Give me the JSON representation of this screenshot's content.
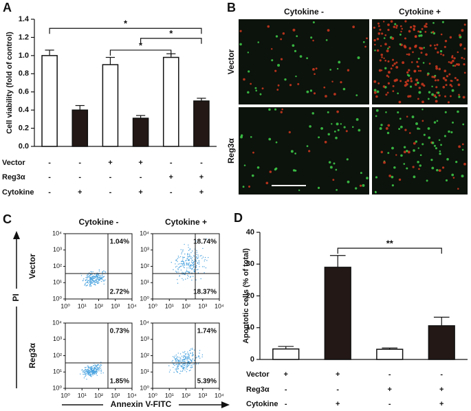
{
  "chart_data": [
    {
      "panel": "A",
      "type": "bar",
      "y_label": "Cell viability (fold of control)",
      "values": [
        1.0,
        0.4,
        0.9,
        0.31,
        0.98,
        0.5
      ],
      "errors": [
        0.06,
        0.05,
        0.08,
        0.03,
        0.04,
        0.03
      ],
      "colors": [
        "#ffffff",
        "#231815",
        "#ffffff",
        "#231815",
        "#ffffff",
        "#231815"
      ],
      "ylim": [
        0,
        1.4
      ],
      "yticks": [
        {
          "value": 0,
          "label": "0.0"
        },
        0.2,
        0.4,
        0.6,
        0.8,
        {
          "value": 1,
          "label": "1.0"
        },
        1.2,
        1.4
      ],
      "conditions": [
        {
          "label": "Vector",
          "signs": [
            "-",
            "-",
            "+",
            "+",
            "-",
            "-"
          ]
        },
        {
          "label": "Reg3α",
          "signs": [
            "-",
            "-",
            "-",
            "-",
            "+",
            "+"
          ]
        },
        {
          "label": "Cytokine",
          "signs": [
            "-",
            "+",
            "-",
            "+",
            "-",
            "+"
          ]
        }
      ],
      "brackets": [
        {
          "from": 0,
          "to": 5,
          "level": 1.3,
          "label": "*"
        },
        {
          "from": 3,
          "to": 5,
          "level": 1.19,
          "label": "*"
        },
        {
          "from": 2,
          "to": 4,
          "level": 1.06,
          "label": "*"
        }
      ]
    },
    {
      "panel": "D",
      "type": "bar",
      "y_label": "Apoptotic cells (% of total)",
      "values": [
        3.3,
        29.0,
        3.2,
        10.6
      ],
      "errors": [
        0.8,
        3.7,
        0.4,
        2.7
      ],
      "colors": [
        "#ffffff",
        "#231815",
        "#ffffff",
        "#231815"
      ],
      "ylim": [
        0,
        40
      ],
      "yticks": [
        0,
        10,
        20,
        30,
        40
      ],
      "conditions": [
        {
          "label": "Vector",
          "signs": [
            "+",
            "+",
            "-",
            "-"
          ]
        },
        {
          "label": "Reg3α",
          "signs": [
            "-",
            "-",
            "+",
            "+"
          ]
        },
        {
          "label": "Cytokine",
          "signs": [
            "-",
            "+",
            "-",
            "+"
          ]
        }
      ],
      "brackets": [
        {
          "from": 1,
          "to": 3,
          "level": 35,
          "label": "**"
        }
      ]
    }
  ],
  "images": {
    "panel": "B",
    "column_headers": [
      "Cytokine -",
      "Cytokine +"
    ],
    "row_labels": [
      "Vector",
      "Reg3α"
    ]
  },
  "flow": {
    "panel": "C",
    "column_headers": [
      "Cytokine -",
      "Cytokine +"
    ],
    "row_labels": [
      "Vector",
      "Reg3α"
    ],
    "x_label": "Annexin V-FITC",
    "y_label": "PI",
    "xlim": [
      1,
      10000
    ],
    "ylim": [
      1,
      10000
    ],
    "log": true,
    "xticks": [
      {
        "value": 1,
        "label": "10⁰"
      },
      {
        "value": 10,
        "label": "10¹"
      },
      {
        "value": 100,
        "label": "10²"
      },
      {
        "value": 1000,
        "label": "10³"
      },
      {
        "value": 10000,
        "label": "10⁴"
      }
    ],
    "yticks": [
      {
        "value": 1,
        "label": "10⁰"
      },
      {
        "value": 10,
        "label": "10¹"
      },
      {
        "value": 100,
        "label": "10²"
      },
      {
        "value": 1000,
        "label": "10³"
      },
      {
        "value": 10000,
        "label": "10⁴"
      }
    ],
    "gate": {
      "x": 360,
      "y": 36
    },
    "color": "#4aa3df",
    "plots": [
      {
        "upper_right": "1.04%",
        "lower_right": "2.72%"
      },
      {
        "upper_right": "18.74%",
        "lower_right": "18.37%"
      },
      {
        "upper_right": "0.73%",
        "lower_right": "1.85%"
      },
      {
        "upper_right": "1.74%",
        "lower_right": "5.39%"
      }
    ]
  }
}
